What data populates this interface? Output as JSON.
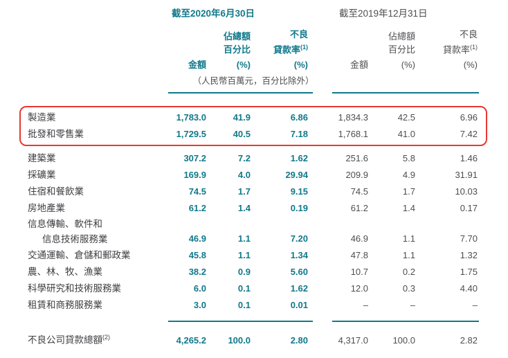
{
  "colors": {
    "teal": "#10798B",
    "red": "#E8382F",
    "ink": "#3E3F42",
    "muted": "#4D4E51"
  },
  "table": {
    "header": {
      "period_2020": "截至2020年6月30日",
      "period_2019": "截至2019年12月31日",
      "amount": "金額",
      "pct_line1": "佔總額",
      "pct_line2": "百分比",
      "npl_line1": "不良",
      "npl_line2": "貸款率",
      "npl_sup": "(1)",
      "pct_unit": "(%)"
    },
    "note": "（人民幣百萬元，百分比除外）",
    "rows": [
      {
        "label": "製造業",
        "highlight": true,
        "y2020": [
          "1,783.0",
          "41.9",
          "6.86"
        ],
        "y2019": [
          "1,834.3",
          "42.5",
          "6.96"
        ]
      },
      {
        "label": "批發和零售業",
        "highlight": true,
        "y2020": [
          "1,729.5",
          "40.5",
          "7.18"
        ],
        "y2019": [
          "1,768.1",
          "41.0",
          "7.42"
        ]
      },
      {
        "label": "建築業",
        "highlight": false,
        "y2020": [
          "307.2",
          "7.2",
          "1.62"
        ],
        "y2019": [
          "251.6",
          "5.8",
          "1.46"
        ]
      },
      {
        "label": "採礦業",
        "highlight": false,
        "y2020": [
          "169.9",
          "4.0",
          "29.94"
        ],
        "y2019": [
          "209.9",
          "4.9",
          "31.91"
        ]
      },
      {
        "label": "住宿和餐飲業",
        "highlight": false,
        "y2020": [
          "74.5",
          "1.7",
          "9.15"
        ],
        "y2019": [
          "74.5",
          "1.7",
          "10.03"
        ]
      },
      {
        "label": "房地產業",
        "highlight": false,
        "y2020": [
          "61.2",
          "1.4",
          "0.19"
        ],
        "y2019": [
          "61.2",
          "1.4",
          "0.17"
        ]
      },
      {
        "label": "信息傳輸、軟件和",
        "label2": "信息技術服務業",
        "highlight": false,
        "y2020": [
          "46.9",
          "1.1",
          "7.20"
        ],
        "y2019": [
          "46.9",
          "1.1",
          "7.70"
        ]
      },
      {
        "label": "交通運輸、倉儲和郵政業",
        "highlight": false,
        "y2020": [
          "45.8",
          "1.1",
          "1.34"
        ],
        "y2019": [
          "47.8",
          "1.1",
          "1.32"
        ]
      },
      {
        "label": "農、林、牧、漁業",
        "highlight": false,
        "y2020": [
          "38.2",
          "0.9",
          "5.60"
        ],
        "y2019": [
          "10.7",
          "0.2",
          "1.75"
        ]
      },
      {
        "label": "科學研究和技術服務業",
        "highlight": false,
        "y2020": [
          "6.0",
          "0.1",
          "1.62"
        ],
        "y2019": [
          "12.0",
          "0.3",
          "4.40"
        ]
      },
      {
        "label": "租賃和商務服務業",
        "highlight": false,
        "y2020": [
          "3.0",
          "0.1",
          "0.01"
        ],
        "y2019": [
          "–",
          "–",
          "–"
        ]
      }
    ],
    "total": {
      "label": "不良公司貸款總額",
      "sup": "(2)",
      "y2020": [
        "4,265.2",
        "100.0",
        "2.80"
      ],
      "y2019": [
        "4,317.0",
        "100.0",
        "2.82"
      ]
    }
  }
}
